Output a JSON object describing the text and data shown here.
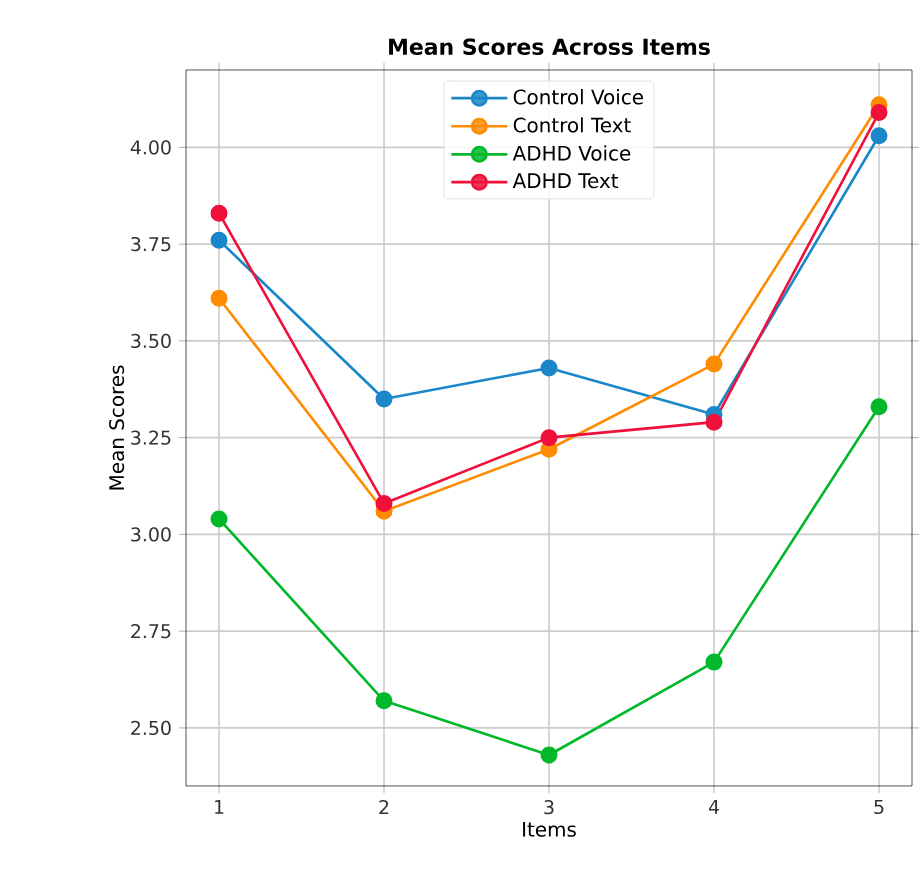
{
  "chart_data": {
    "type": "line",
    "title": "Mean Scores Across Items",
    "xlabel": "Items",
    "ylabel": "Mean Scores",
    "x": [
      1,
      2,
      3,
      4,
      5
    ],
    "xlim": [
      0.8,
      5.2
    ],
    "xticks": [
      1,
      2,
      3,
      4,
      5
    ],
    "ylim": [
      2.35,
      4.2
    ],
    "yticks": [
      {
        "value": 2.5,
        "label": "2.50"
      },
      {
        "value": 2.75,
        "label": "2.75"
      },
      {
        "value": 3.0,
        "label": "3.00"
      },
      {
        "value": 3.25,
        "label": "3.25"
      },
      {
        "value": 3.5,
        "label": "3.50"
      },
      {
        "value": 3.75,
        "label": "3.75"
      },
      {
        "value": 4.0,
        "label": "4.00"
      }
    ],
    "series": [
      {
        "name": "Control Voice",
        "color": "#1a87c8",
        "values": [
          3.76,
          3.35,
          3.43,
          3.31,
          4.03
        ]
      },
      {
        "name": "Control Text",
        "color": "#ff8c00",
        "values": [
          3.61,
          3.06,
          3.22,
          3.44,
          4.11
        ]
      },
      {
        "name": "ADHD Voice",
        "color": "#00b82a",
        "values": [
          3.04,
          2.57,
          2.43,
          2.67,
          3.33
        ]
      },
      {
        "name": "ADHD Text",
        "color": "#f0103c",
        "values": [
          3.83,
          3.08,
          3.25,
          3.29,
          4.09
        ]
      }
    ],
    "grid": true,
    "legend": "top",
    "marker": "circle",
    "line_style": "solid"
  }
}
